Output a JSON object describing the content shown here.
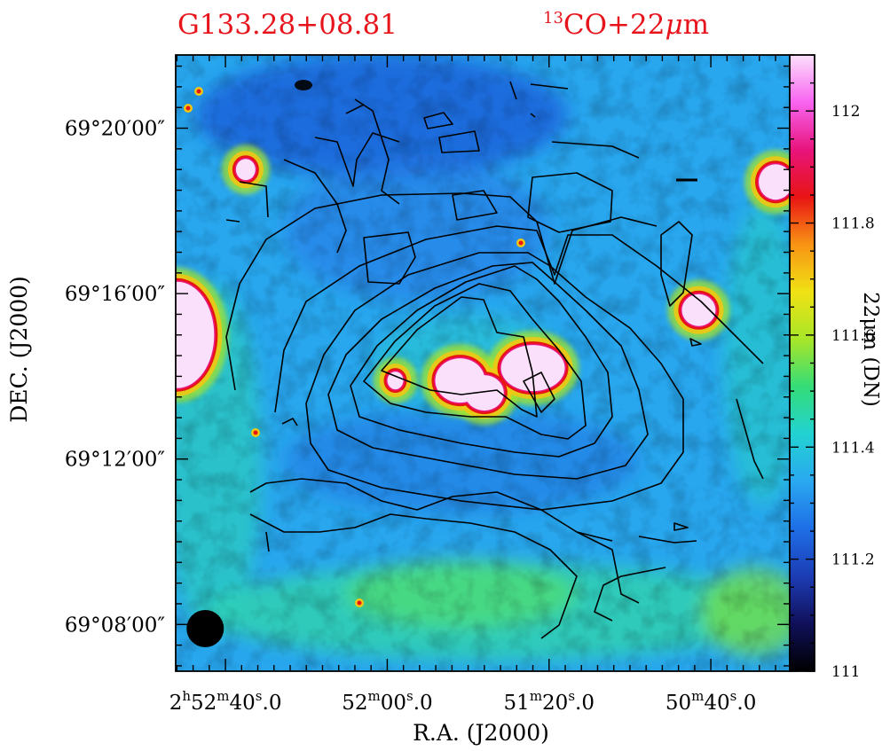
{
  "header": {
    "source_name": "G133.28+08.81",
    "mol_super": "13",
    "mol_text": "CO+22",
    "mol_mu": "μ",
    "mol_unit": "m"
  },
  "colors": {
    "title": "#e8141c",
    "contour": "#000000",
    "colormap": [
      "#000000",
      "#10105a",
      "#1c3cb4",
      "#1e6ee6",
      "#2aa8f0",
      "#22d2d2",
      "#34dc78",
      "#a8e628",
      "#f0e214",
      "#f89414",
      "#e81414",
      "#e8147c",
      "#f864f0",
      "#fbe0fb"
    ]
  },
  "chart_data": {
    "type": "heatmap",
    "title": "G133.28+08.81",
    "subtitle": "13CO+22μm",
    "xlabel": "R.A. (J2000)",
    "ylabel": "DEC. (J2000)",
    "colorbar_label": "22μm (DN)",
    "colorbar_range": [
      111.0,
      112.1
    ],
    "colorbar_ticks": [
      "111",
      "111.2",
      "111.4",
      "111.6",
      "111.8",
      "112"
    ],
    "x_ticks": [
      {
        "h": "2",
        "hs": "h",
        "m": "52",
        "ms": "m",
        "s": "40",
        "ss": "s",
        "frac": "0"
      },
      {
        "h": "",
        "hs": "",
        "m": "52",
        "ms": "m",
        "s": "00",
        "ss": "s",
        "frac": "0"
      },
      {
        "h": "",
        "hs": "",
        "m": "51",
        "ms": "m",
        "s": "20",
        "ss": "s",
        "frac": "0"
      },
      {
        "h": "",
        "hs": "",
        "m": "50",
        "ms": "m",
        "s": "40",
        "ss": "s",
        "frac": "0"
      }
    ],
    "y_ticks": [
      "69°20′00″",
      "69°16′00″",
      "69°12′00″",
      "69°08′00″"
    ],
    "background_level": 111.25,
    "emission_blobs": [
      {
        "ra_s": 3168,
        "dec_min": 15.0,
        "value": 112.3,
        "note": "bright extended west"
      },
      {
        "ra_s": 3102,
        "dec_min": 13.9,
        "value": 112.3
      },
      {
        "ra_s": 3087,
        "dec_min": 14.1,
        "value": 112.3
      },
      {
        "ra_s": 3109,
        "dec_min": 13.8,
        "value": 112.3
      },
      {
        "ra_s": 3155,
        "dec_min": 19.0,
        "value": 112.3
      },
      {
        "ra_s": 3043,
        "dec_min": 15.6,
        "value": 112.3
      },
      {
        "ra_s": 3024,
        "dec_min": 18.7,
        "value": 112.3
      },
      {
        "ra_s": 3118,
        "dec_min": 13.9,
        "value": 112.2
      }
    ],
    "beam": {
      "ra_s": 3165,
      "dec_min": 7.9
    }
  }
}
